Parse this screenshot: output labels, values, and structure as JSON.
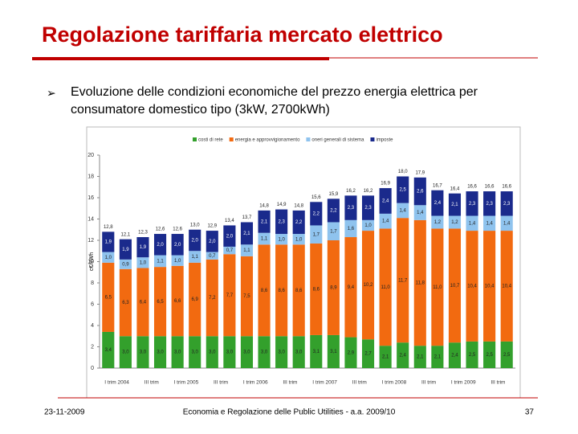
{
  "slide": {
    "title": "Regolazione tariffaria mercato elettrico",
    "bullet": "Evoluzione delle condizioni economiche del prezzo energia elettrica per consumatore domestico tipo (3kW, 2700kWh)",
    "footer_date": "23-11-2009",
    "footer_course": "Economia e Regolazione delle Public Utilities - a.a. 2009/10",
    "page_number": "37"
  },
  "chart_data": {
    "type": "stacked_bar",
    "y_label": "c€/kWh",
    "categories": [
      "I trim 2004",
      null,
      "III trim",
      null,
      "I trim 2005",
      null,
      "III trim",
      null,
      "I trim 2006",
      null,
      "III trim",
      null,
      "I trim 2007",
      null,
      "III trim",
      null,
      "I trim 2008",
      null,
      "III trim",
      null,
      "I trim 2009",
      null,
      "III trim",
      null
    ],
    "series": [
      {
        "name": "costi di rete",
        "color": "#33a02c",
        "values": [
          3.4,
          3.0,
          3.0,
          3.0,
          3.0,
          3.0,
          3.0,
          3.0,
          3.0,
          3.0,
          3.0,
          3.0,
          3.1,
          3.1,
          2.9,
          2.7,
          2.1,
          2.4,
          2.1,
          2.1,
          2.4,
          2.5,
          2.5,
          2.5
        ],
        "value_labels": [
          "3,4",
          "3,0",
          "3,0",
          "3,0",
          "3,0",
          "3,0",
          "3,0",
          "3,0",
          "3,0",
          "3,0",
          "3,0",
          "3,0",
          "3,1",
          "3,1",
          "2,9",
          "2,7",
          "2,1",
          "2,4",
          "2,1",
          "2,1",
          "2,4",
          "2,5",
          "2,5",
          "2,5"
        ]
      },
      {
        "name": "energia e approvvigionamento",
        "color": "#f26a10",
        "values": [
          6.5,
          6.3,
          6.4,
          6.5,
          6.6,
          6.9,
          7.2,
          7.7,
          7.5,
          8.6,
          8.6,
          8.6,
          8.6,
          8.9,
          9.4,
          10.2,
          11.0,
          11.7,
          11.8,
          11.0,
          10.7,
          10.4,
          10.4,
          10.4
        ],
        "value_labels": [
          "6,5",
          "6,3",
          "6,4",
          "6,5",
          "6,6",
          "6,9",
          "7,2",
          "7,7",
          "7,5",
          "8,6",
          "8,6",
          "8,6",
          "8,6",
          "8,9",
          "9,4",
          "10,2",
          "11,0",
          "11,7",
          "11,8",
          "11,0",
          "10,7",
          "10,4",
          "10,4",
          "10,4"
        ]
      },
      {
        "name": "oneri generali di sistema",
        "color": "#8fc3ee",
        "values": [
          1.0,
          0.9,
          1.0,
          1.1,
          1.0,
          1.1,
          0.7,
          0.7,
          1.1,
          1.1,
          1.0,
          1.0,
          1.7,
          1.7,
          1.6,
          1.0,
          1.4,
          1.4,
          1.4,
          1.2,
          1.2,
          1.4,
          1.4,
          1.4
        ],
        "value_labels": [
          "1,0",
          "0,9",
          "1,0",
          "1,1",
          "1,0",
          "1,1",
          "0,7",
          "0,7",
          "1,1",
          "1,1",
          "1,0",
          "1,0",
          "1,7",
          "1,7",
          "1,6",
          "1,0",
          "1,4",
          "1,4",
          "1,4",
          "1,2",
          "1,2",
          "1,4",
          "1,4",
          "1,4"
        ]
      },
      {
        "name": "imposte",
        "color": "#1a2a8c",
        "values": [
          1.9,
          1.9,
          1.9,
          2.0,
          2.0,
          2.0,
          2.0,
          2.0,
          2.1,
          2.1,
          2.3,
          2.2,
          2.2,
          2.2,
          2.3,
          2.3,
          2.4,
          2.5,
          2.6,
          2.4,
          2.1,
          2.3,
          2.3,
          2.3
        ],
        "value_labels": [
          "1,9",
          "1,9",
          "1,9",
          "2,0",
          "2,0",
          "2,0",
          "2,0",
          "2,0",
          "2,1",
          "2,1",
          "2,3",
          "2,2",
          "2,2",
          "2,2",
          "2,3",
          "2,3",
          "2,4",
          "2,5",
          "2,6",
          "2,4",
          "2,1",
          "2,3",
          "2,3",
          "2,3"
        ]
      }
    ],
    "totals": [
      12.8,
      12.1,
      12.3,
      12.6,
      12.6,
      13.0,
      12.9,
      13.4,
      13.7,
      14.8,
      14.9,
      14.8,
      15.6,
      15.9,
      16.2,
      16.2,
      16.9,
      18.0,
      17.9,
      16.7,
      16.4,
      16.6,
      16.6,
      16.6
    ],
    "total_labels": [
      "12,8",
      "12,1",
      "12,3",
      "12,6",
      "12,6",
      "13,0",
      "12,9",
      "13,4",
      "13,7",
      "14,8",
      "14,9",
      "14,8",
      "15,6",
      "15,9",
      "16,2",
      "16,2",
      "16,9",
      "18,0",
      "17,9",
      "16,7",
      "16,4",
      "16,6",
      "16,6",
      "16,6"
    ],
    "ylim": [
      0,
      20
    ],
    "yticks": [
      0,
      2,
      4,
      6,
      8,
      10,
      12,
      14,
      16,
      18,
      20
    ],
    "grid": false,
    "legend": "top"
  }
}
